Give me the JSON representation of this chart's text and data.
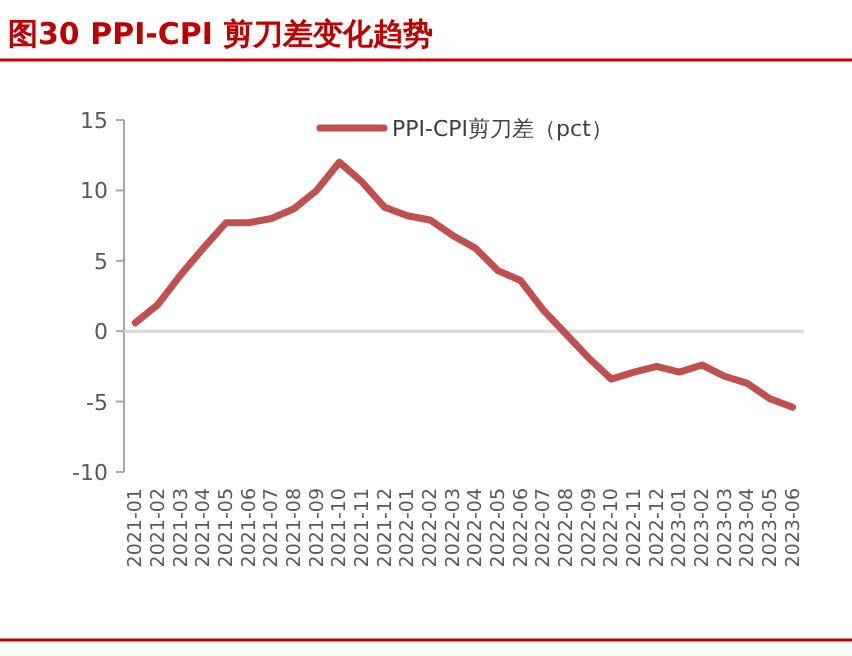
{
  "chart_data": {
    "type": "line",
    "title": "图30  PPI-CPI 剪刀差变化趋势",
    "categories": [
      "2021-01",
      "2021-02",
      "2021-03",
      "2021-04",
      "2021-05",
      "2021-06",
      "2021-07",
      "2021-08",
      "2021-09",
      "2021-10",
      "2021-11",
      "2021-12",
      "2022-01",
      "2022-02",
      "2022-03",
      "2022-04",
      "2022-05",
      "2022-06",
      "2022-07",
      "2022-08",
      "2022-09",
      "2022-10",
      "2022-11",
      "2022-12",
      "2023-01",
      "2023-02",
      "2023-03",
      "2023-04",
      "2023-05",
      "2023-06"
    ],
    "series": [
      {
        "name": "PPI-CPI剪刀差（pct）",
        "color": "#c0504d",
        "values": [
          0.6,
          1.9,
          4.0,
          5.9,
          7.7,
          7.7,
          8.0,
          8.7,
          10.0,
          12.0,
          10.6,
          8.8,
          8.2,
          7.9,
          6.8,
          5.9,
          4.3,
          3.6,
          1.5,
          -0.2,
          -1.9,
          -3.4,
          -2.9,
          -2.5,
          -2.9,
          -2.4,
          -3.2,
          -3.7,
          -4.8,
          -5.4
        ]
      }
    ],
    "ylim": [
      -10,
      15
    ],
    "yticks": [
      -10,
      -5,
      0,
      5,
      10,
      15
    ],
    "legend": "top right",
    "marker": "none",
    "line_style": "solid"
  }
}
